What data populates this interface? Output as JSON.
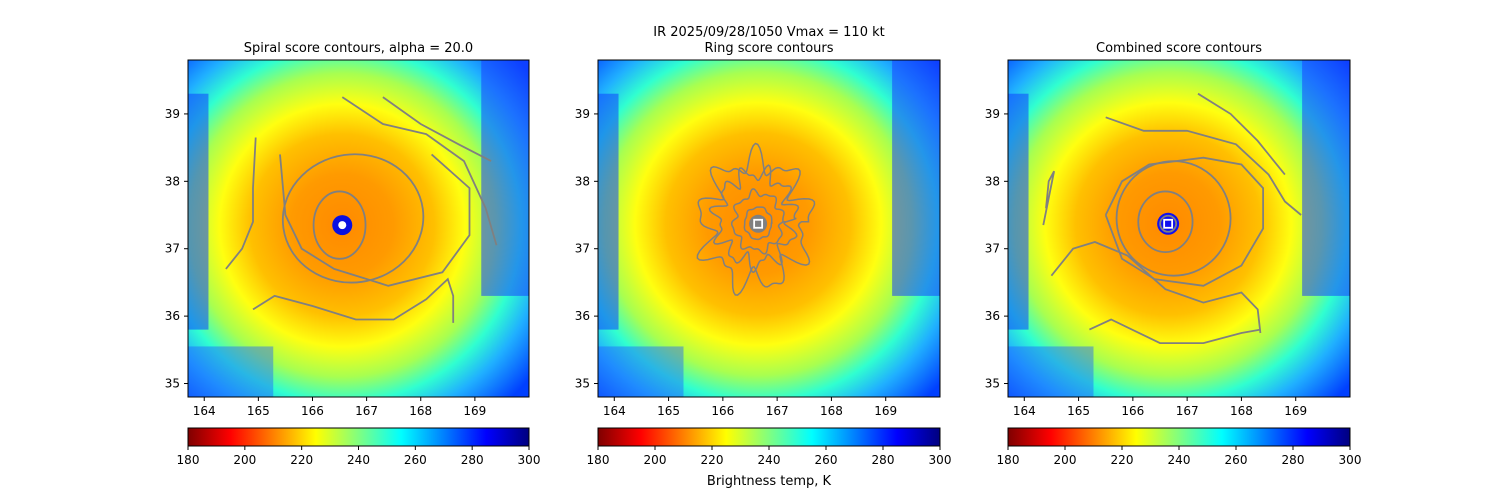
{
  "figure": {
    "suptitle": "IR  2025/09/28/1050    Vmax = 110 kt",
    "colorbar_label": "Brightness temp, K"
  },
  "chart_data": [
    {
      "type": "heatmap",
      "title": "Spiral score contours, alpha = 20.0",
      "xlim": [
        163.7,
        170.0
      ],
      "ylim": [
        34.8,
        39.8
      ],
      "xticks": [
        164,
        165,
        166,
        167,
        168,
        169
      ],
      "yticks": [
        35,
        36,
        37,
        38,
        39
      ],
      "center": [
        166.55,
        37.35
      ],
      "eye": "cold-dot",
      "contour_color": "#808080",
      "contours": [
        {
          "shape": "ellipse",
          "cx": 166.5,
          "cy": 37.35,
          "rx": 0.48,
          "ry": 0.5,
          "rot": 0
        },
        {
          "shape": "ellipse",
          "cx": 166.75,
          "cy": 37.45,
          "rx": 1.3,
          "ry": 0.95,
          "rot": -8
        },
        {
          "shape": "line",
          "points": [
            [
              165.4,
              38.4
            ],
            [
              165.5,
              37.5
            ],
            [
              165.8,
              37.0
            ],
            [
              166.4,
              36.7
            ],
            [
              167.4,
              36.45
            ],
            [
              168.4,
              36.65
            ],
            [
              168.9,
              37.2
            ],
            [
              168.9,
              37.9
            ],
            [
              168.2,
              38.4
            ]
          ]
        },
        {
          "shape": "line",
          "points": [
            [
              166.55,
              39.25
            ],
            [
              167.3,
              38.85
            ],
            [
              168.1,
              38.7
            ],
            [
              168.8,
              38.3
            ],
            [
              169.2,
              37.6
            ],
            [
              169.4,
              37.05
            ]
          ]
        },
        {
          "shape": "line",
          "points": [
            [
              167.3,
              39.25
            ],
            [
              168.0,
              38.85
            ],
            [
              168.7,
              38.55
            ],
            [
              169.3,
              38.3
            ]
          ]
        },
        {
          "shape": "line",
          "points": [
            [
              164.95,
              38.65
            ],
            [
              164.9,
              37.9
            ],
            [
              164.9,
              37.4
            ],
            [
              164.7,
              37.0
            ],
            [
              164.4,
              36.7
            ]
          ]
        },
        {
          "shape": "line",
          "points": [
            [
              164.9,
              36.1
            ],
            [
              165.3,
              36.3
            ],
            [
              166.0,
              36.15
            ],
            [
              166.8,
              35.95
            ],
            [
              167.5,
              35.95
            ],
            [
              168.1,
              36.25
            ],
            [
              168.5,
              36.55
            ],
            [
              168.6,
              36.3
            ],
            [
              168.6,
              35.9
            ]
          ]
        }
      ]
    },
    {
      "type": "heatmap",
      "title": "Ring score contours",
      "xlim": [
        163.7,
        170.0
      ],
      "ylim": [
        34.8,
        39.8
      ],
      "xticks": [
        164,
        165,
        166,
        167,
        168,
        169
      ],
      "yticks": [
        35,
        36,
        37,
        38,
        39
      ],
      "center": [
        166.65,
        37.37
      ],
      "eye": "square-marker",
      "contour_color": "#808080",
      "contours": [
        {
          "shape": "noisy",
          "cx": 166.6,
          "cy": 37.4,
          "r": 0.95,
          "amp": 0.18,
          "freq": 9
        },
        {
          "shape": "noisy",
          "cx": 166.6,
          "cy": 37.45,
          "r": 0.7,
          "amp": 0.15,
          "freq": 11
        },
        {
          "shape": "noisy",
          "cx": 166.65,
          "cy": 37.4,
          "r": 0.45,
          "amp": 0.1,
          "freq": 8
        },
        {
          "shape": "noisy",
          "cx": 166.65,
          "cy": 37.38,
          "r": 0.25,
          "amp": 0.05,
          "freq": 6
        }
      ]
    },
    {
      "type": "heatmap",
      "title": "Combined score contours",
      "xlim": [
        163.7,
        170.0
      ],
      "ylim": [
        34.8,
        39.8
      ],
      "xticks": [
        164,
        165,
        166,
        167,
        168,
        169
      ],
      "yticks": [
        35,
        36,
        37,
        38,
        39
      ],
      "center": [
        166.65,
        37.37
      ],
      "eye": "square-marker",
      "contour_color": "#808080",
      "contours": [
        {
          "shape": "ellipse",
          "cx": 166.6,
          "cy": 37.4,
          "rx": 0.5,
          "ry": 0.45,
          "rot": 0
        },
        {
          "shape": "ellipse",
          "cx": 166.75,
          "cy": 37.45,
          "rx": 1.05,
          "ry": 0.85,
          "rot": -10
        },
        {
          "shape": "line",
          "points": [
            [
              165.5,
              37.5
            ],
            [
              165.8,
              36.85
            ],
            [
              166.4,
              36.55
            ],
            [
              167.3,
              36.45
            ],
            [
              168.0,
              36.75
            ],
            [
              168.4,
              37.3
            ],
            [
              168.4,
              37.9
            ],
            [
              168.0,
              38.25
            ],
            [
              167.3,
              38.35
            ],
            [
              166.3,
              38.25
            ],
            [
              165.8,
              38.0
            ],
            [
              165.5,
              37.5
            ]
          ]
        },
        {
          "shape": "line",
          "points": [
            [
              165.5,
              38.95
            ],
            [
              166.2,
              38.75
            ],
            [
              167.0,
              38.75
            ],
            [
              167.9,
              38.55
            ],
            [
              168.5,
              38.1
            ],
            [
              168.8,
              37.7
            ],
            [
              169.1,
              37.5
            ]
          ]
        },
        {
          "shape": "line",
          "points": [
            [
              167.2,
              39.3
            ],
            [
              167.8,
              39.0
            ],
            [
              168.3,
              38.6
            ],
            [
              168.8,
              38.1
            ]
          ]
        },
        {
          "shape": "line",
          "points": [
            [
              164.4,
              37.6
            ],
            [
              164.45,
              38.0
            ],
            [
              164.55,
              38.15
            ],
            [
              164.35,
              37.35
            ]
          ]
        },
        {
          "shape": "line",
          "points": [
            [
              164.5,
              36.6
            ],
            [
              164.9,
              37.0
            ],
            [
              165.3,
              37.1
            ],
            [
              165.9,
              36.9
            ],
            [
              166.6,
              36.4
            ],
            [
              167.3,
              36.2
            ],
            [
              168.0,
              36.35
            ],
            [
              168.3,
              36.1
            ],
            [
              168.35,
              35.75
            ]
          ]
        },
        {
          "shape": "line",
          "points": [
            [
              165.2,
              35.8
            ],
            [
              165.6,
              35.95
            ],
            [
              166.5,
              35.6
            ],
            [
              167.3,
              35.6
            ],
            [
              168.0,
              35.75
            ],
            [
              168.35,
              35.8
            ]
          ]
        }
      ]
    }
  ],
  "colorbar": {
    "min": 180,
    "max": 300,
    "ticks": [
      180,
      200,
      220,
      240,
      260,
      280,
      300
    ],
    "colormap": "jet_r",
    "colors": [
      "#7f0000",
      "#ff0000",
      "#ff8000",
      "#ffff00",
      "#80ff80",
      "#00ffff",
      "#0080ff",
      "#0000ff",
      "#00007f"
    ]
  }
}
